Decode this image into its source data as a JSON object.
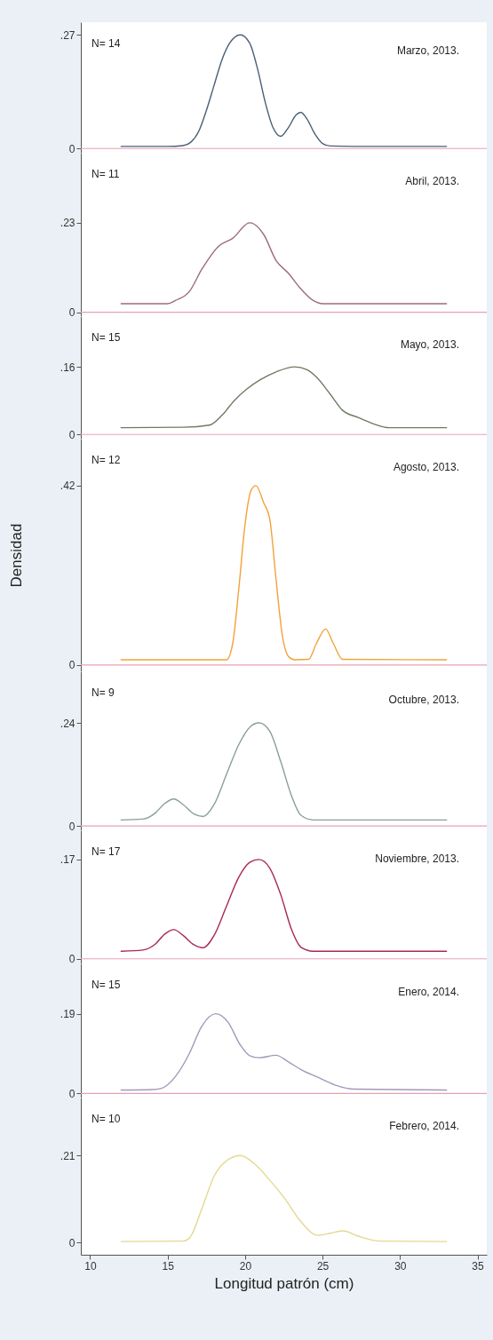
{
  "chart_data": [
    {
      "type": "line",
      "color": "#4a5f75",
      "xlim": [
        9.4,
        35.6
      ],
      "ylim": [
        -0.01,
        0.3
      ],
      "yticks": [
        {
          "value": 0,
          "label": "0"
        },
        {
          "value": 0.27,
          "label": ".27"
        }
      ],
      "tick_labels": "y",
      "ref_lines": [
        {
          "axis": "y",
          "value": 0,
          "color": "#e8a0b4"
        }
      ],
      "annotations": [
        "N= 14",
        "Marzo, 2013."
      ],
      "x": [
        12,
        15,
        16,
        16.5,
        17,
        17.5,
        18,
        18.5,
        19,
        19.7,
        20.3,
        20.8,
        21.3,
        21.8,
        22.3,
        22.8,
        23.3,
        23.6,
        24,
        24.5,
        25,
        25.5,
        27,
        33
      ],
      "values": [
        0.005,
        0.005,
        0.007,
        0.015,
        0.04,
        0.09,
        0.15,
        0.21,
        0.25,
        0.27,
        0.25,
        0.19,
        0.11,
        0.05,
        0.029,
        0.05,
        0.08,
        0.086,
        0.07,
        0.035,
        0.012,
        0.006,
        0.005,
        0.005
      ]
    },
    {
      "type": "line",
      "color": "#9c6d78",
      "xlim": [
        9.4,
        35.6
      ],
      "ylim": [
        -0.01,
        0.41
      ],
      "yticks": [
        {
          "value": 0,
          "label": "0"
        },
        {
          "value": 0.23,
          "label": ".23"
        }
      ],
      "tick_labels": "y",
      "ref_lines": [
        {
          "axis": "y",
          "value": 0,
          "color": "#e8a0b4"
        }
      ],
      "annotations": [
        "N= 11",
        "Abril, 2013."
      ],
      "x": [
        12,
        15,
        15.5,
        16.4,
        17.2,
        18.3,
        19.2,
        20.3,
        21.2,
        22,
        22.8,
        23.6,
        24.4,
        25,
        33
      ],
      "values": [
        0.022,
        0.022,
        0.03,
        0.053,
        0.11,
        0.17,
        0.19,
        0.23,
        0.2,
        0.133,
        0.1,
        0.06,
        0.03,
        0.022,
        0.022
      ]
    },
    {
      "type": "line",
      "color": "#6e7a62",
      "xlim": [
        9.4,
        35.6
      ],
      "ylim": [
        -0.01,
        0.28
      ],
      "yticks": [
        {
          "value": 0,
          "label": "0"
        },
        {
          "value": 0.16,
          "label": ".16"
        }
      ],
      "tick_labels": "y",
      "ref_lines": [
        {
          "axis": "y",
          "value": 0,
          "color": "#e8a0b4"
        }
      ],
      "annotations": [
        "N= 15",
        "Mayo, 2013."
      ],
      "x": [
        12,
        16,
        17.7,
        18.5,
        19.3,
        20.1,
        21,
        22,
        23.2,
        24,
        24.6,
        25.5,
        26.3,
        27.3,
        28.3,
        29.3,
        33
      ],
      "values": [
        0.016,
        0.017,
        0.022,
        0.045,
        0.08,
        0.107,
        0.13,
        0.148,
        0.16,
        0.153,
        0.136,
        0.095,
        0.057,
        0.04,
        0.025,
        0.016,
        0.016
      ]
    },
    {
      "type": "line",
      "color": "#f2a23a",
      "xlim": [
        9.4,
        35.6
      ],
      "ylim": [
        -0.015,
        0.53
      ],
      "yticks": [
        {
          "value": 0,
          "label": "0"
        },
        {
          "value": 0.42,
          "label": ".42"
        }
      ],
      "tick_labels": "y",
      "ylabel": "Densidad",
      "ref_lines": [
        {
          "axis": "y",
          "value": 0,
          "color": "#e8a0b4"
        }
      ],
      "annotations": [
        "N= 12",
        "Agosto, 2013."
      ],
      "x": [
        12,
        18.8,
        19.2,
        19.6,
        20,
        20.4,
        20.7,
        21.2,
        21.6,
        22,
        22.4,
        22.8,
        23.2,
        24.1,
        24.6,
        25.2,
        25.7,
        26.3,
        33
      ],
      "values": [
        0.012,
        0.012,
        0.05,
        0.18,
        0.33,
        0.41,
        0.42,
        0.38,
        0.34,
        0.2,
        0.07,
        0.02,
        0.012,
        0.013,
        0.05,
        0.084,
        0.05,
        0.013,
        0.012
      ]
    },
    {
      "type": "line",
      "color": "#8a9f98",
      "xlim": [
        9.4,
        35.6
      ],
      "ylim": [
        -0.01,
        0.36
      ],
      "yticks": [
        {
          "value": 0,
          "label": "0"
        },
        {
          "value": 0.24,
          "label": ".24"
        }
      ],
      "tick_labels": "y",
      "ref_lines": [
        {
          "axis": "y",
          "value": 0,
          "color": "#e8a0b4"
        }
      ],
      "annotations": [
        "N= 9",
        "Octubre, 2013."
      ],
      "x": [
        12,
        13.4,
        14.2,
        14.8,
        15.4,
        16,
        16.7,
        17.3,
        18,
        18.8,
        19.6,
        20.3,
        20.9,
        21.6,
        22.3,
        23,
        23.6,
        24.4,
        33
      ],
      "values": [
        0.014,
        0.016,
        0.03,
        0.052,
        0.063,
        0.05,
        0.028,
        0.022,
        0.05,
        0.12,
        0.19,
        0.23,
        0.24,
        0.22,
        0.15,
        0.07,
        0.025,
        0.014,
        0.014
      ]
    },
    {
      "type": "line",
      "color": "#a8285a",
      "xlim": [
        9.4,
        35.6
      ],
      "ylim": [
        -0.008,
        0.22
      ],
      "yticks": [
        {
          "value": 0,
          "label": "0"
        },
        {
          "value": 0.17,
          "label": ".17"
        }
      ],
      "tick_labels": "y",
      "ref_lines": [
        {
          "axis": "y",
          "value": 0,
          "color": "#e8a0b4"
        }
      ],
      "annotations": [
        "N= 17",
        "Noviembre, 2013."
      ],
      "x": [
        12,
        13.4,
        14.2,
        14.8,
        15.4,
        16,
        16.7,
        17.3,
        18,
        18.8,
        19.6,
        20.3,
        20.9,
        21.6,
        22.3,
        23,
        23.6,
        24.4,
        33
      ],
      "values": [
        0.013,
        0.015,
        0.025,
        0.042,
        0.05,
        0.04,
        0.024,
        0.019,
        0.04,
        0.09,
        0.14,
        0.165,
        0.17,
        0.155,
        0.11,
        0.05,
        0.02,
        0.013,
        0.013
      ]
    },
    {
      "type": "line",
      "color": "#a19ab8",
      "xlim": [
        9.4,
        35.6
      ],
      "ylim": [
        -0.01,
        0.31
      ],
      "yticks": [
        {
          "value": 0,
          "label": "0"
        },
        {
          "value": 0.19,
          "label": ".19"
        }
      ],
      "tick_labels": "y",
      "ref_lines": [
        {
          "axis": "y",
          "value": 0,
          "color": "#e8a0b4"
        }
      ],
      "annotations": [
        "N= 15",
        "Enero, 2014."
      ],
      "x": [
        12,
        14,
        14.6,
        15.5,
        16.4,
        17.2,
        18.1,
        18.9,
        19.7,
        20.3,
        20.9,
        22,
        22.8,
        23.7,
        24.6,
        25.8,
        27.1,
        33
      ],
      "values": [
        0.008,
        0.009,
        0.012,
        0.04,
        0.095,
        0.16,
        0.19,
        0.17,
        0.115,
        0.09,
        0.085,
        0.091,
        0.075,
        0.055,
        0.04,
        0.02,
        0.01,
        0.008
      ]
    },
    {
      "type": "line",
      "color": "#e3d98f",
      "xlim": [
        9.4,
        35.6
      ],
      "ylim": [
        -0.03,
        0.35
      ],
      "yticks": [
        {
          "value": 0,
          "label": "0"
        },
        {
          "value": 0.21,
          "label": ".21"
        }
      ],
      "xticks": [
        10,
        15,
        20,
        25,
        30,
        35
      ],
      "xlabel": "Longitud patrón (cm)",
      "annotations": [
        "N= 10",
        "Febrero, 2014."
      ],
      "x": [
        12,
        16,
        16.4,
        17.2,
        18,
        18.9,
        19.7,
        20.6,
        21.6,
        22.6,
        23.6,
        24.7,
        25.5,
        26.3,
        27.3,
        28.7,
        33
      ],
      "values": [
        0.002,
        0.003,
        0.01,
        0.08,
        0.16,
        0.2,
        0.21,
        0.19,
        0.15,
        0.104,
        0.05,
        0.017,
        0.022,
        0.028,
        0.015,
        0.003,
        0.002
      ]
    }
  ]
}
